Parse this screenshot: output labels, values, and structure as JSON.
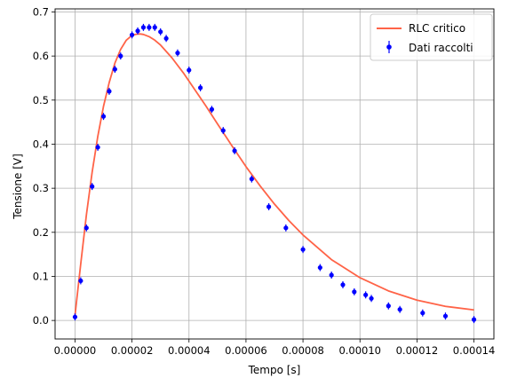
{
  "chart_data": {
    "type": "scatter",
    "title": "",
    "xlabel": "Tempo [s]",
    "ylabel": "Tensione [V]",
    "xlim": [
      -7e-06,
      0.000147
    ],
    "ylim": [
      -0.042,
      0.707
    ],
    "grid": true,
    "legend_position": "top-right",
    "x_tick_values": [
      0.0,
      2e-05,
      4e-05,
      6e-05,
      8e-05,
      0.0001,
      0.00012,
      0.00014
    ],
    "x_tick_labels": [
      "0.00000",
      "0.00002",
      "0.00004",
      "0.00006",
      "0.00008",
      "0.00010",
      "0.00012",
      "0.00014"
    ],
    "y_tick_values": [
      0.0,
      0.1,
      0.2,
      0.3,
      0.4,
      0.5,
      0.6,
      0.7
    ],
    "y_tick_labels": [
      "0.0",
      "0.1",
      "0.2",
      "0.3",
      "0.4",
      "0.5",
      "0.6",
      "0.7"
    ],
    "series": [
      {
        "name": "RLC critico",
        "kind": "line",
        "color": "#ff6347",
        "x": [
          0.0,
          2e-06,
          4e-06,
          6e-06,
          8e-06,
          1e-05,
          1.2e-05,
          1.4e-05,
          1.6e-05,
          1.8e-05,
          2e-05,
          2.2e-05,
          2.3e-05,
          2.4e-05,
          2.6e-05,
          2.8e-05,
          3e-05,
          3.4e-05,
          3.8e-05,
          4.2e-05,
          4.6e-05,
          5e-05,
          5.5e-05,
          6e-05,
          6.5e-05,
          7e-05,
          7.5e-05,
          8e-05,
          9e-05,
          0.0001,
          0.00011,
          0.00012,
          0.00013,
          0.00014
        ],
        "y": [
          0.012,
          0.128,
          0.24,
          0.336,
          0.418,
          0.486,
          0.54,
          0.584,
          0.615,
          0.636,
          0.647,
          0.65,
          0.65,
          0.649,
          0.644,
          0.636,
          0.625,
          0.596,
          0.562,
          0.524,
          0.486,
          0.446,
          0.397,
          0.349,
          0.305,
          0.264,
          0.227,
          0.194,
          0.138,
          0.097,
          0.067,
          0.046,
          0.032,
          0.024
        ]
      },
      {
        "name": "Dati raccolti",
        "kind": "errorbar-points",
        "color": "#0000ff",
        "x": [
          0.0,
          2e-06,
          4e-06,
          6e-06,
          8e-06,
          1e-05,
          1.2e-05,
          1.4e-05,
          1.6e-05,
          2e-05,
          2.2e-05,
          2.4e-05,
          2.6e-05,
          2.8e-05,
          3e-05,
          3.2e-05,
          3.6e-05,
          4e-05,
          4.4e-05,
          4.8e-05,
          5.2e-05,
          5.6e-05,
          6.2e-05,
          6.8e-05,
          7.4e-05,
          8e-05,
          8.6e-05,
          9e-05,
          9.4e-05,
          9.8e-05,
          0.000102,
          0.000104,
          0.00011,
          0.000114,
          0.000122,
          0.00013,
          0.00014
        ],
        "y": [
          0.008,
          0.09,
          0.21,
          0.304,
          0.393,
          0.463,
          0.52,
          0.57,
          0.6,
          0.648,
          0.657,
          0.665,
          0.665,
          0.665,
          0.655,
          0.64,
          0.607,
          0.568,
          0.528,
          0.479,
          0.431,
          0.385,
          0.321,
          0.258,
          0.21,
          0.161,
          0.12,
          0.103,
          0.081,
          0.065,
          0.058,
          0.05,
          0.033,
          0.025,
          0.017,
          0.01,
          0.002
        ],
        "yerr": 0.008
      }
    ]
  }
}
